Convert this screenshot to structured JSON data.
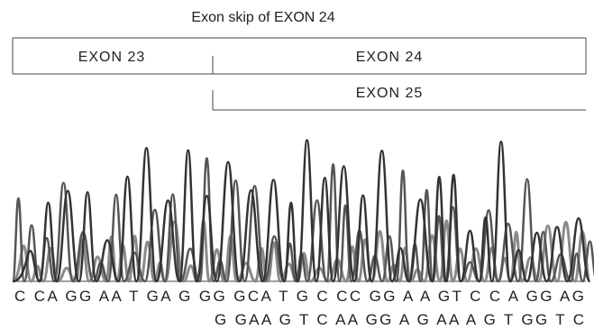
{
  "title": "Exon skip of EXON 24",
  "exons": [
    "EXON 23",
    "EXON 24",
    "EXON 25"
  ],
  "sequences": [
    "C CA GG AA T GA G GG GCA T G C CC GG A A GT C C A GG AG",
    "G GAA G T C AA GG A G AA A G T GG T C"
  ]
}
